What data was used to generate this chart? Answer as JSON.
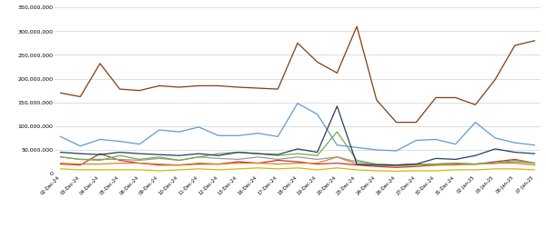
{
  "x_labels": [
    "02-Dec-24",
    "03-Dec-24",
    "04-Dec-24",
    "05-Dec-24",
    "06-Dec-24",
    "09-Dec-24",
    "10-Dec-24",
    "11-Dec-24",
    "12-Dec-24",
    "13-Dec-24",
    "16-Dec-24",
    "17-Dec-24",
    "18-Dec-24",
    "19-Dec-24",
    "20-Dec-24",
    "23-Dec-24",
    "24-Dec-24",
    "26-Dec-24",
    "27-Dec-24",
    "30-Dec-24",
    "31-Dec-24",
    "02-Jan-25",
    "03-Jan-25",
    "06-Jan-25",
    "07-Jan-25"
  ],
  "MSTR": [
    20000000,
    18000000,
    42000000,
    28000000,
    22000000,
    18000000,
    18000000,
    20000000,
    20000000,
    25000000,
    22000000,
    28000000,
    25000000,
    20000000,
    22000000,
    18000000,
    15000000,
    13000000,
    15000000,
    18000000,
    20000000,
    20000000,
    25000000,
    30000000,
    22000000
  ],
  "MSFT": [
    22000000,
    20000000,
    20000000,
    22000000,
    22000000,
    20000000,
    18000000,
    22000000,
    20000000,
    22000000,
    22000000,
    20000000,
    22000000,
    22000000,
    35000000,
    20000000,
    18000000,
    16000000,
    18000000,
    18000000,
    18000000,
    20000000,
    22000000,
    22000000,
    18000000
  ],
  "GOOG": [
    35000000,
    30000000,
    30000000,
    30000000,
    28000000,
    32000000,
    28000000,
    35000000,
    32000000,
    30000000,
    35000000,
    30000000,
    35000000,
    30000000,
    35000000,
    25000000,
    20000000,
    18000000,
    20000000,
    20000000,
    22000000,
    20000000,
    22000000,
    25000000,
    22000000
  ],
  "META": [
    10000000,
    8000000,
    8000000,
    8000000,
    8000000,
    6000000,
    8000000,
    10000000,
    8000000,
    10000000,
    12000000,
    10000000,
    12000000,
    8000000,
    12000000,
    8000000,
    6000000,
    5000000,
    6000000,
    6000000,
    8000000,
    8000000,
    10000000,
    10000000,
    8000000
  ],
  "TSLA": [
    78000000,
    58000000,
    72000000,
    68000000,
    62000000,
    92000000,
    88000000,
    98000000,
    80000000,
    80000000,
    85000000,
    78000000,
    148000000,
    125000000,
    60000000,
    55000000,
    50000000,
    48000000,
    70000000,
    72000000,
    62000000,
    108000000,
    75000000,
    65000000,
    60000000
  ],
  "AMD": [
    35000000,
    30000000,
    28000000,
    38000000,
    30000000,
    35000000,
    28000000,
    35000000,
    42000000,
    45000000,
    42000000,
    38000000,
    42000000,
    38000000,
    88000000,
    28000000,
    20000000,
    18000000,
    20000000,
    20000000,
    22000000,
    20000000,
    22000000,
    28000000,
    22000000
  ],
  "APPL": [
    45000000,
    42000000,
    40000000,
    45000000,
    42000000,
    40000000,
    38000000,
    42000000,
    38000000,
    45000000,
    42000000,
    40000000,
    52000000,
    45000000,
    142000000,
    20000000,
    18000000,
    18000000,
    20000000,
    32000000,
    30000000,
    38000000,
    52000000,
    45000000,
    42000000
  ],
  "NVDA": [
    170000000,
    162000000,
    232000000,
    178000000,
    175000000,
    185000000,
    182000000,
    185000000,
    185000000,
    182000000,
    180000000,
    178000000,
    275000000,
    235000000,
    212000000,
    310000000,
    155000000,
    108000000,
    108000000,
    160000000,
    160000000,
    145000000,
    198000000,
    270000000,
    280000000
  ],
  "colors": {
    "MSTR": "#c0392b",
    "MSFT": "#e67e22",
    "GOOG": "#999999",
    "META": "#d4b800",
    "TSLA": "#5b9bd5",
    "AMD": "#70ad47",
    "APPL": "#243f60",
    "NVDA": "#843c0c"
  },
  "ylim": [
    0,
    350000000
  ],
  "yticks": [
    0,
    50000000,
    100000000,
    150000000,
    200000000,
    250000000,
    300000000,
    350000000
  ]
}
